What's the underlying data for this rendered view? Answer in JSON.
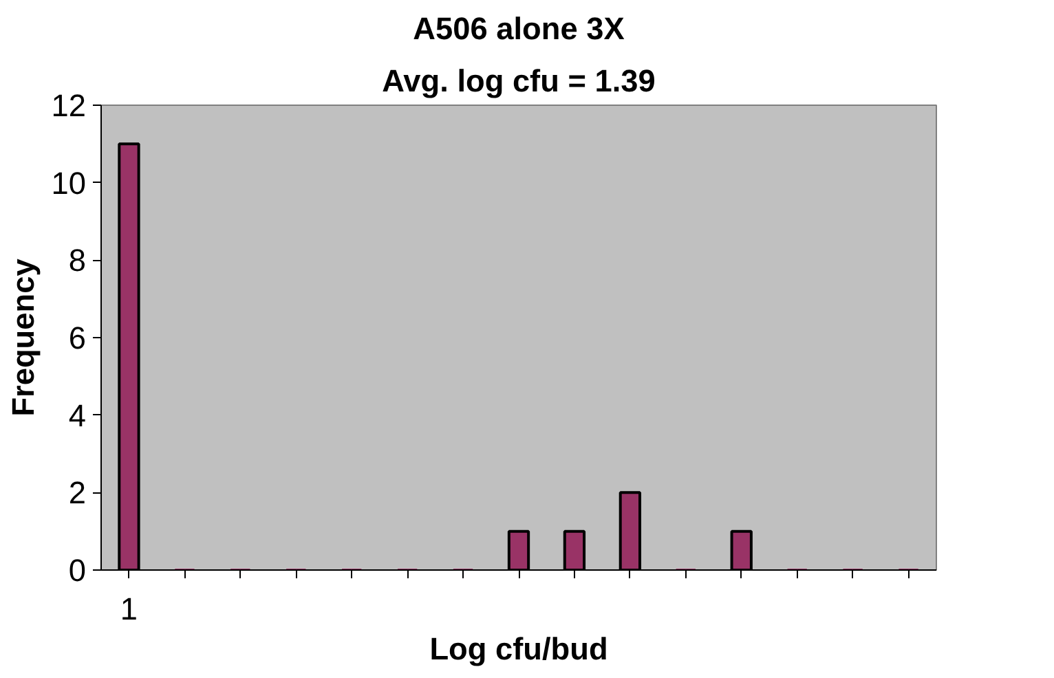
{
  "chart_data": {
    "type": "bar",
    "title": "A506 alone 3X",
    "subtitle": "Avg. log cfu = 1.39",
    "xlabel": "Log cfu/bud",
    "ylabel": "Frequency",
    "categories": [
      "1",
      null,
      null,
      null,
      null,
      null,
      null,
      null,
      null,
      null,
      null,
      null,
      null,
      null,
      null
    ],
    "values": [
      11,
      0,
      0,
      0,
      0,
      0,
      0,
      1,
      1,
      2,
      0,
      1,
      0,
      0,
      0
    ],
    "color": "#993366",
    "ylim": [
      0,
      12
    ],
    "yticks": [
      0,
      2,
      4,
      6,
      8,
      10,
      12
    ],
    "grid": false
  }
}
